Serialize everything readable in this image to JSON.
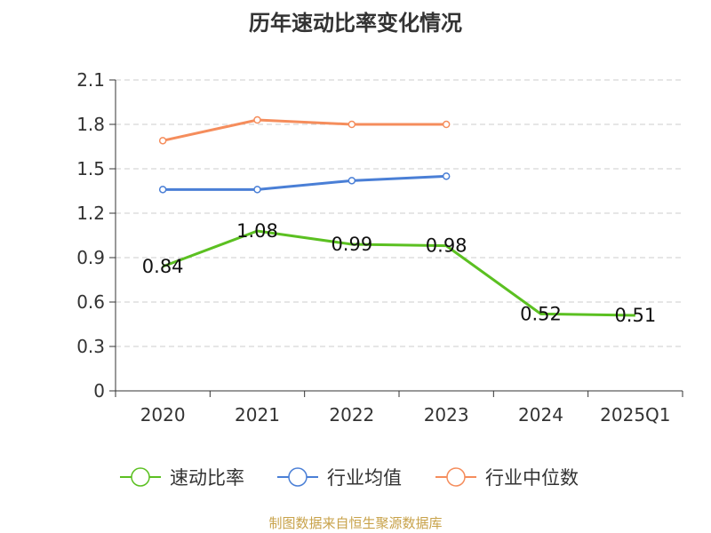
{
  "chart_data": {
    "type": "line",
    "title": "历年速动比率变化情况",
    "categories": [
      "2020",
      "2021",
      "2022",
      "2023",
      "2024",
      "2025Q1"
    ],
    "ylim": [
      0,
      2.1
    ],
    "yticks": [
      "0",
      "0.3",
      "0.6",
      "0.9",
      "1.2",
      "1.5",
      "1.8",
      "2.1"
    ],
    "grid": true,
    "legend_position": "bottom",
    "series": [
      {
        "name": "速动比率",
        "color": "#5bc021",
        "values": [
          0.84,
          1.08,
          0.99,
          0.98,
          0.52,
          0.51
        ],
        "labels": [
          "0.84",
          "1.08",
          "0.99",
          "0.98",
          "0.52",
          "0.51"
        ]
      },
      {
        "name": "行业均值",
        "color": "#4a7fd6",
        "values": [
          1.36,
          1.36,
          1.42,
          1.45,
          null,
          null
        ]
      },
      {
        "name": "行业中位数",
        "color": "#f58d5c",
        "values": [
          1.69,
          1.83,
          1.8,
          1.8,
          null,
          null
        ]
      }
    ]
  },
  "source_text": "制图数据来自恒生聚源数据库"
}
